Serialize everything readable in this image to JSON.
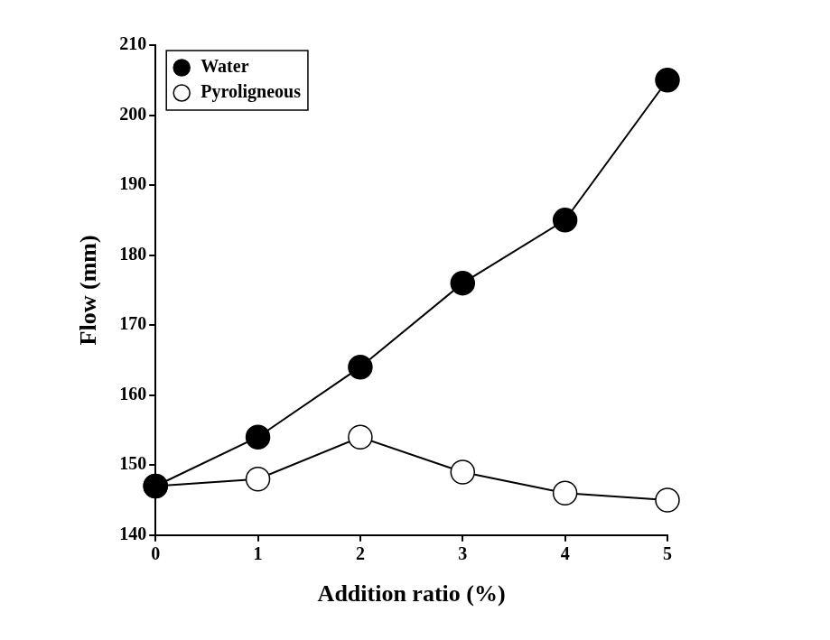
{
  "chart_data": {
    "type": "line",
    "x_label": "Addition ratio (%)",
    "y_label": "Flow (mm)",
    "x": [
      0,
      1,
      2,
      3,
      4,
      5
    ],
    "series": [
      {
        "name": "Water",
        "color": "#000000",
        "marker": "filled_circle",
        "values": [
          147,
          154,
          164,
          176,
          185,
          205
        ]
      },
      {
        "name": "Pyroligneous",
        "color": "#000000",
        "marker": "open_circle",
        "values": [
          147,
          148,
          154,
          149,
          146,
          145
        ]
      }
    ],
    "xlim": [
      0,
      5
    ],
    "xticks": [
      0,
      1,
      2,
      3,
      4,
      5
    ],
    "ylim": [
      140,
      210
    ],
    "yticks": [
      140,
      150,
      160,
      170,
      180,
      190,
      200,
      210
    ],
    "grid": false,
    "legend": "top-left"
  }
}
